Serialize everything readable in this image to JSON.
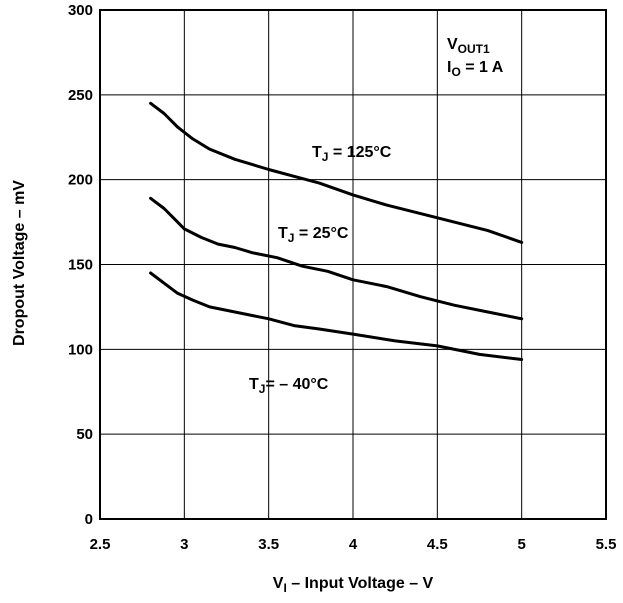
{
  "chart_data": {
    "type": "line",
    "title": "",
    "xlabel": {
      "main": "V",
      "sub": "I",
      "rest": " – Input Voltage – V"
    },
    "ylabel": "Dropout Voltage – mV",
    "xlim": [
      2.5,
      5.5
    ],
    "ylim": [
      0,
      300
    ],
    "x_ticks": [
      "2.5",
      "3",
      "3.5",
      "4",
      "4.5",
      "5",
      "5.5"
    ],
    "y_ticks": [
      "0",
      "50",
      "100",
      "150",
      "200",
      "250",
      "300"
    ],
    "grid": true,
    "annotation": {
      "line1": {
        "main": "V",
        "sub": "OUT1"
      },
      "line2": {
        "main": "I",
        "sub": "O",
        "rest": " = 1 A"
      }
    },
    "series": [
      {
        "label": {
          "main": "T",
          "sub": "J",
          "rest": " = 125°C"
        },
        "points": [
          [
            2.8,
            245
          ],
          [
            2.88,
            239
          ],
          [
            2.96,
            231
          ],
          [
            3.05,
            224
          ],
          [
            3.15,
            218
          ],
          [
            3.3,
            212
          ],
          [
            3.5,
            206
          ],
          [
            3.65,
            202
          ],
          [
            3.8,
            198
          ],
          [
            4.0,
            191
          ],
          [
            4.2,
            185
          ],
          [
            4.4,
            180
          ],
          [
            4.6,
            175
          ],
          [
            4.8,
            170
          ],
          [
            5.0,
            163
          ]
        ]
      },
      {
        "label": {
          "main": "T",
          "sub": "J",
          "rest": " = 25°C"
        },
        "points": [
          [
            2.8,
            189
          ],
          [
            2.88,
            183
          ],
          [
            2.96,
            175
          ],
          [
            3.0,
            171
          ],
          [
            3.1,
            166
          ],
          [
            3.2,
            162
          ],
          [
            3.3,
            160
          ],
          [
            3.4,
            157
          ],
          [
            3.55,
            154
          ],
          [
            3.7,
            149
          ],
          [
            3.85,
            146
          ],
          [
            4.0,
            141
          ],
          [
            4.2,
            137
          ],
          [
            4.4,
            131
          ],
          [
            4.6,
            126
          ],
          [
            4.8,
            122
          ],
          [
            5.0,
            118
          ]
        ]
      },
      {
        "label": {
          "main": "T",
          "sub": "J",
          "rest": "= – 40°C"
        },
        "points": [
          [
            2.8,
            145
          ],
          [
            2.88,
            139
          ],
          [
            2.96,
            133
          ],
          [
            3.05,
            129
          ],
          [
            3.15,
            125
          ],
          [
            3.3,
            122
          ],
          [
            3.5,
            118
          ],
          [
            3.65,
            114
          ],
          [
            3.8,
            112
          ],
          [
            4.0,
            109
          ],
          [
            4.25,
            105
          ],
          [
            4.5,
            102
          ],
          [
            4.75,
            97
          ],
          [
            5.0,
            94
          ]
        ]
      }
    ]
  }
}
